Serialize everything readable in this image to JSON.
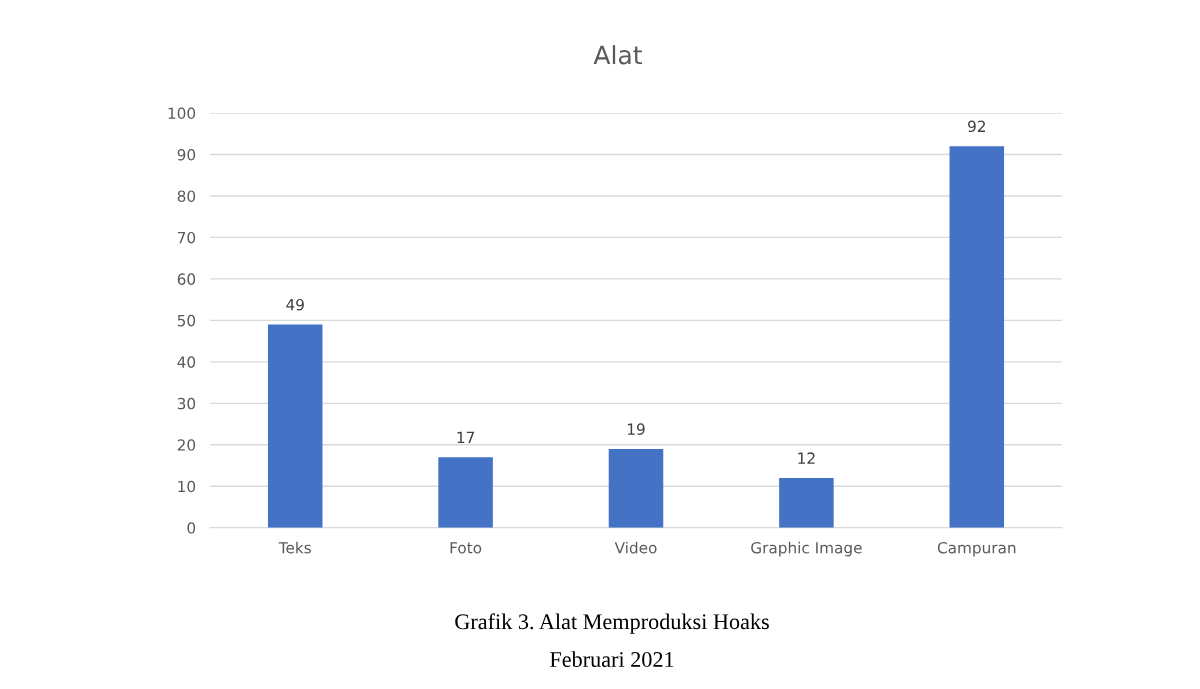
{
  "chart_data": {
    "type": "bar",
    "title": "Alat",
    "categories": [
      "Teks",
      "Foto",
      "Video",
      "Graphic Image",
      "Campuran"
    ],
    "values": [
      49,
      17,
      19,
      12,
      92
    ],
    "color": "#4472c4",
    "ylim": [
      0,
      100
    ],
    "yticks": [
      0,
      10,
      20,
      30,
      40,
      50,
      60,
      70,
      80,
      90,
      100
    ],
    "grid": "y",
    "data_labels": true,
    "annotations": [
      "Grafik 3. Alat Memproduksi Hoaks",
      "Februari 2021"
    ]
  }
}
